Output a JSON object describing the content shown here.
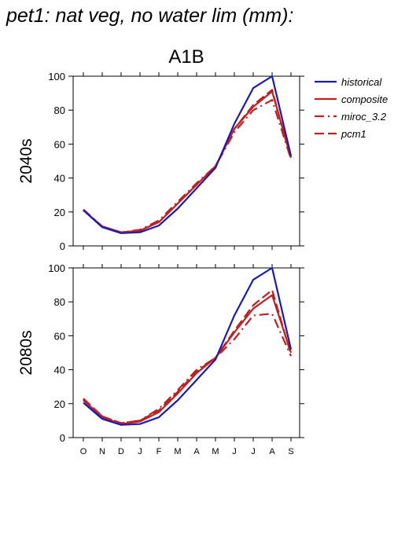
{
  "title": "pet1: nat veg, no water lim (mm):",
  "chart_data": {
    "type": "line",
    "scenario": "A1B",
    "categories": [
      "O",
      "N",
      "D",
      "J",
      "F",
      "M",
      "A",
      "M",
      "J",
      "J",
      "A",
      "S"
    ],
    "ylim": [
      0,
      100
    ],
    "yticks": [
      0,
      20,
      40,
      60,
      80,
      100
    ],
    "grid": false,
    "legend_position": "top-right",
    "colors": {
      "historical": "#1a1ab4",
      "future": "#c02020"
    },
    "panels": [
      {
        "row_label": "2040s",
        "series": [
          {
            "name": "historical",
            "color": "#1a1ab4",
            "dash": "solid",
            "values": [
              21,
              11,
              7.5,
              8,
              12,
              22,
              34,
              46,
              72,
              93,
              100,
              53
            ]
          },
          {
            "name": "composite",
            "color": "#c02020",
            "dash": "solid",
            "values": [
              21,
              11.5,
              8,
              9,
              14,
              25,
              36,
              47,
              69,
              82,
              91,
              52
            ]
          },
          {
            "name": "miroc_3.2",
            "color": "#c02020",
            "dash": "dashdot",
            "values": [
              21.5,
              11.5,
              8,
              9.5,
              15,
              26,
              37,
              47,
              67,
              80,
              86,
              51
            ]
          },
          {
            "name": "pcm1",
            "color": "#c02020",
            "dash": "dash",
            "values": [
              21,
              11.5,
              8,
              9,
              14,
              25,
              36,
              47,
              69,
              83,
              92,
              51
            ]
          }
        ]
      },
      {
        "row_label": "2080s",
        "series": [
          {
            "name": "historical",
            "color": "#1a1ab4",
            "dash": "solid",
            "values": [
              20.5,
              11,
              7.5,
              8,
              12,
              22,
              34,
              46,
              72,
              93,
              100,
              52
            ]
          },
          {
            "name": "composite",
            "color": "#c02020",
            "dash": "solid",
            "values": [
              22,
              12,
              8,
              9.5,
              15,
              26,
              38,
              47,
              62,
              76,
              84,
              50
            ]
          },
          {
            "name": "miroc_3.2",
            "color": "#c02020",
            "dash": "dashdot",
            "values": [
              22.5,
              12.5,
              8.5,
              10,
              17,
              28,
              40,
              47,
              58,
              72,
              73,
              48
            ]
          },
          {
            "name": "pcm1",
            "color": "#c02020",
            "dash": "dash",
            "values": [
              23,
              12.5,
              8.5,
              10,
              16,
              27,
              39,
              47,
              63,
              78,
              87,
              49
            ]
          }
        ]
      }
    ]
  }
}
